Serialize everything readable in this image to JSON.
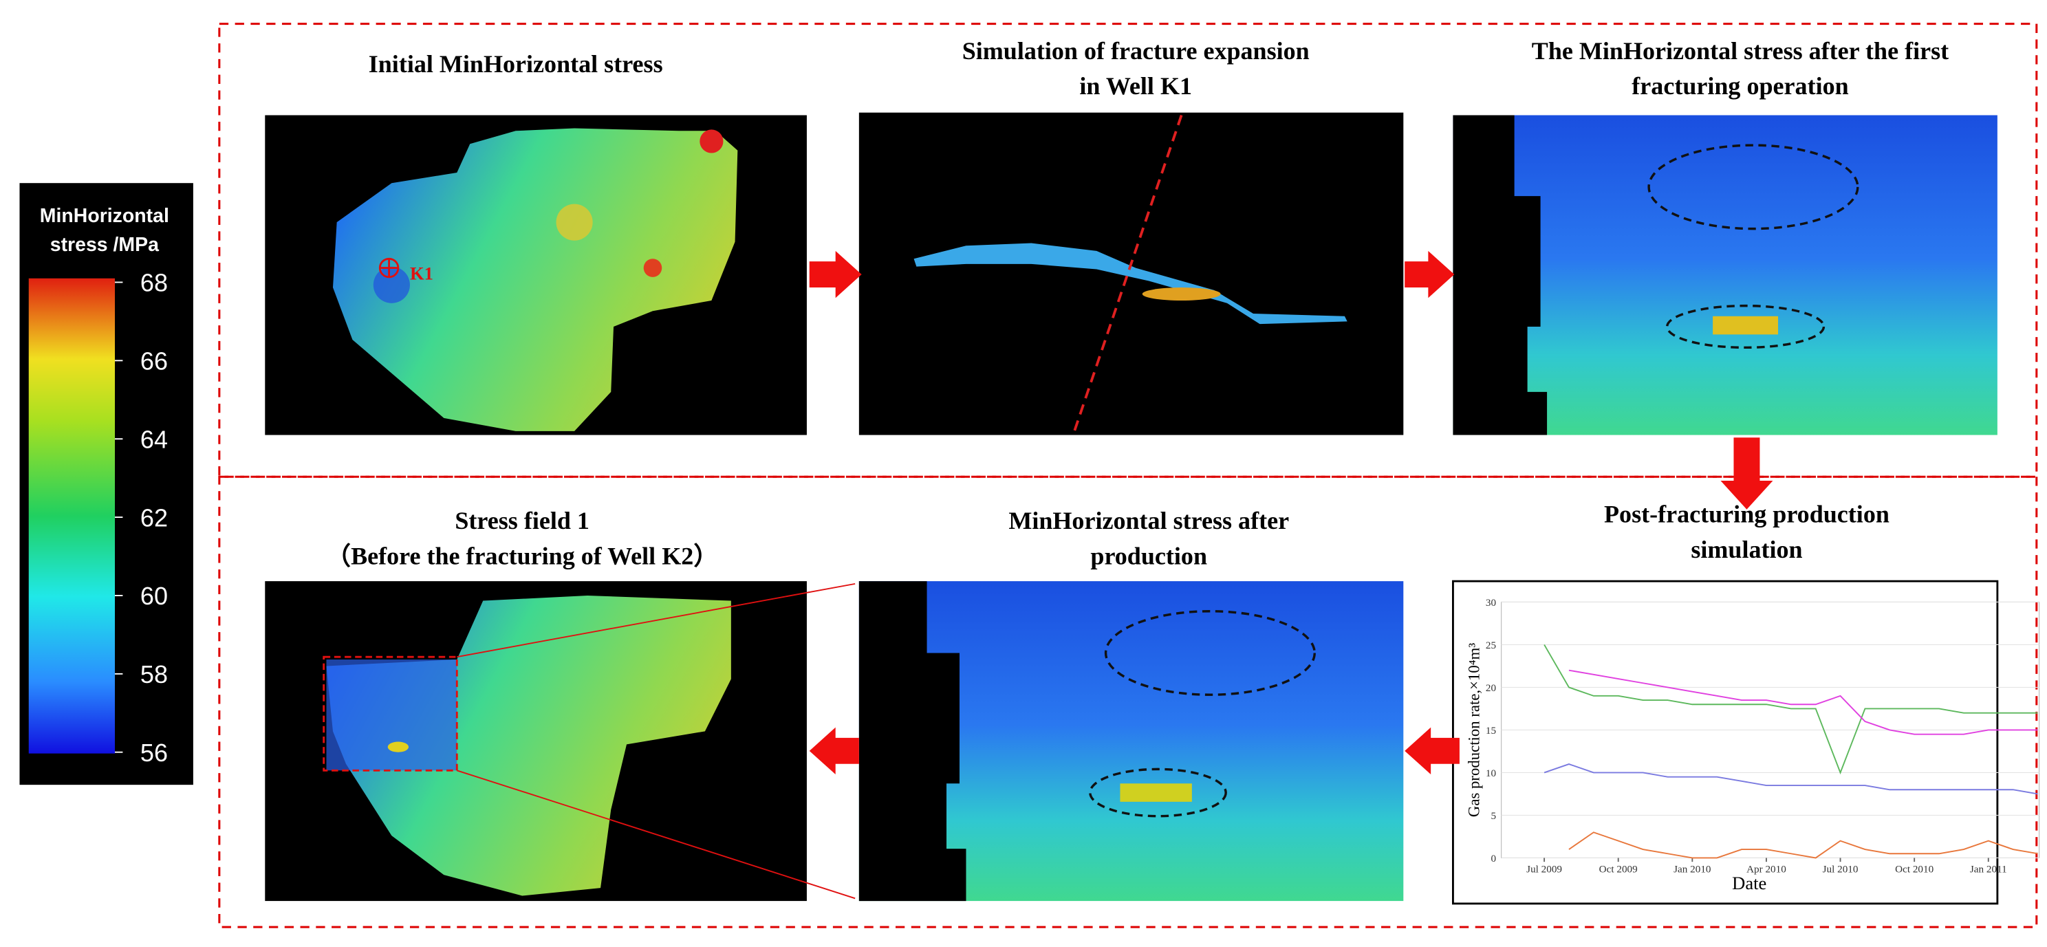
{
  "colorbar": {
    "title_lines": [
      "MinHorizontal",
      "stress /MPa"
    ],
    "lim": [
      56,
      68
    ],
    "ticks": [
      56,
      58,
      60,
      62,
      64,
      66,
      68
    ]
  },
  "well_label": "K1",
  "panels": [
    {
      "title_lines": [
        "Initial MinHorizontal stress"
      ]
    },
    {
      "title_lines": [
        "Simulation of fracture expansion",
        "in Well K1"
      ]
    },
    {
      "title_lines": [
        "The MinHorizontal stress after the first",
        "fracturing operation"
      ]
    },
    {
      "title_lines": [
        "Stress field 1",
        "（Before the fracturing of Well K2）"
      ]
    },
    {
      "title_lines": [
        "MinHorizontal stress after",
        "production"
      ]
    },
    {
      "title_lines": [
        "Post-fracturing production",
        "simulation"
      ]
    }
  ],
  "production_chart": {
    "type": "line",
    "y_label": "Gas production rate,×10⁴m³",
    "x_label": "Date",
    "x": [
      "Jun 2009",
      "Jul 2009",
      "Aug 2009",
      "Sep 2009",
      "Oct 2009",
      "Nov 2009",
      "Dec 2009",
      "Jan 2010",
      "Feb 2010",
      "Mar 2010",
      "Apr 2010",
      "May 2010",
      "Jun 2010",
      "Jul 2010",
      "Aug 2010",
      "Sep 2010",
      "Oct 2010",
      "Nov 2010",
      "Dec 2010",
      "Jan 2011",
      "Feb 2011",
      "Mar 2011"
    ],
    "xticks": [
      "Jul 2009",
      "Oct 2009",
      "Jan 2010",
      "Apr 2010",
      "Jul 2010",
      "Oct 2010",
      "Jan 2011"
    ],
    "ylim": [
      0,
      30
    ],
    "yticks": [
      0,
      5,
      10,
      15,
      20,
      25,
      30
    ],
    "series": [
      {
        "color": "#5cb85c",
        "values": [
          null,
          25,
          20,
          19,
          19,
          18.5,
          18.5,
          18,
          18,
          18,
          18,
          17.5,
          17.5,
          10,
          17.5,
          17.5,
          17.5,
          17.5,
          17,
          17,
          17,
          17
        ]
      },
      {
        "color": "#e040e0",
        "values": [
          null,
          null,
          22,
          21.5,
          21,
          20.5,
          20,
          19.5,
          19,
          18.5,
          18.5,
          18,
          18,
          19,
          16,
          15,
          14.5,
          14.5,
          14.5,
          15,
          15,
          15
        ]
      },
      {
        "color": "#7a7ae0",
        "values": [
          null,
          10,
          11,
          10,
          10,
          10,
          9.5,
          9.5,
          9.5,
          9,
          8.5,
          8.5,
          8.5,
          8.5,
          8.5,
          8,
          8,
          8,
          8,
          8,
          8,
          7.5
        ]
      },
      {
        "color": "#e8763a",
        "values": [
          null,
          null,
          1,
          3,
          2,
          1,
          0.5,
          0,
          0,
          1,
          1,
          0.5,
          0,
          2,
          1,
          0.5,
          0.5,
          0.5,
          1,
          2,
          1,
          0.5
        ]
      }
    ]
  }
}
